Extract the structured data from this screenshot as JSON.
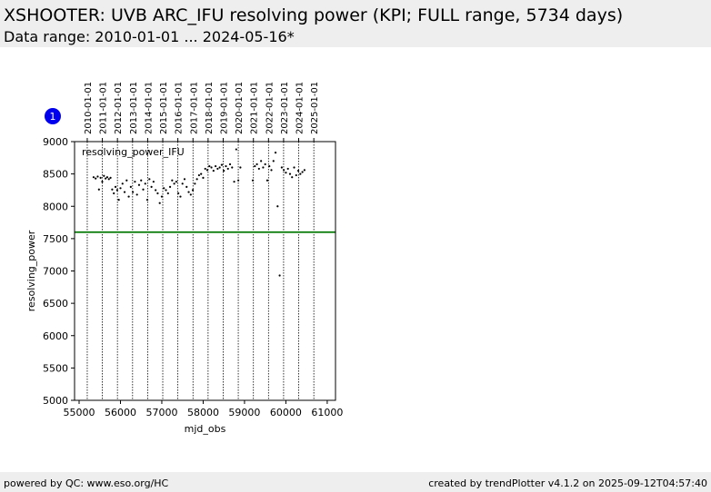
{
  "header": {
    "title": "XSHOOTER: UVB ARC_IFU resolving power (KPI; FULL range, 5734 days)",
    "subtitle": "Data range: 2010-01-01 ... 2024-05-16*"
  },
  "footer": {
    "left": "powered by QC: www.eso.org/HC",
    "right": "created by trendPlotter v4.1.2 on 2025-09-12T04:57:40"
  },
  "chart_data": {
    "type": "scatter",
    "marker": "1",
    "xlabel": "mjd_obs",
    "ylabel": "resolving_power",
    "xlim": [
      54890,
      61200
    ],
    "ylim": [
      5000,
      9000
    ],
    "xticks": [
      55000,
      56000,
      57000,
      58000,
      59000,
      60000,
      61000
    ],
    "yticks": [
      5000,
      5500,
      6000,
      6500,
      7000,
      7500,
      8000,
      8500,
      9000
    ],
    "top_ticks": [
      {
        "value": 55197,
        "label": "2010-01-01"
      },
      {
        "value": 55562,
        "label": "2011-01-01"
      },
      {
        "value": 55927,
        "label": "2012-01-01"
      },
      {
        "value": 56293,
        "label": "2013-01-01"
      },
      {
        "value": 56658,
        "label": "2014-01-01"
      },
      {
        "value": 57023,
        "label": "2015-01-01"
      },
      {
        "value": 57388,
        "label": "2016-01-01"
      },
      {
        "value": 57754,
        "label": "2017-01-01"
      },
      {
        "value": 58119,
        "label": "2018-01-01"
      },
      {
        "value": 58484,
        "label": "2019-01-01"
      },
      {
        "value": 58849,
        "label": "2020-01-01"
      },
      {
        "value": 59215,
        "label": "2021-01-01"
      },
      {
        "value": 59580,
        "label": "2022-01-01"
      },
      {
        "value": 59945,
        "label": "2023-01-01"
      },
      {
        "value": 60310,
        "label": "2024-01-01"
      },
      {
        "value": 60676,
        "label": "2025-01-01"
      }
    ],
    "threshold": 7600,
    "threshold_color": "#007700",
    "series": [
      {
        "name": "resolving_power_IFU",
        "color": "#000000",
        "x": [
          55350,
          55400,
          55450,
          55480,
          55520,
          55560,
          55600,
          55640,
          55680,
          55720,
          55760,
          55800,
          55840,
          55880,
          55920,
          55960,
          56000,
          56050,
          56100,
          56150,
          56200,
          56250,
          56300,
          56350,
          56400,
          56450,
          56500,
          56550,
          56600,
          56650,
          56700,
          56750,
          56800,
          56850,
          56900,
          56950,
          57000,
          57050,
          57100,
          57150,
          57200,
          57250,
          57300,
          57350,
          57400,
          57450,
          57500,
          57550,
          57600,
          57650,
          57700,
          57750,
          57800,
          57850,
          57900,
          57950,
          58000,
          58050,
          58100,
          58150,
          58200,
          58250,
          58300,
          58350,
          58400,
          58450,
          58500,
          58550,
          58600,
          58650,
          58700,
          58750,
          58800,
          58850,
          58900,
          59200,
          59250,
          59300,
          59350,
          59400,
          59450,
          59500,
          59550,
          59600,
          59650,
          59700,
          59750,
          59800,
          59850,
          59900,
          59950,
          60000,
          60050,
          60100,
          60150,
          60200,
          60250,
          60300,
          60350,
          60400,
          60450
        ],
        "values": [
          8450,
          8430,
          8460,
          8260,
          8440,
          8380,
          8470,
          8430,
          8450,
          8420,
          8440,
          8260,
          8200,
          8300,
          8250,
          8100,
          8280,
          8350,
          8220,
          8400,
          8150,
          8300,
          8220,
          8380,
          8180,
          8330,
          8400,
          8260,
          8350,
          8100,
          8420,
          8300,
          8380,
          8250,
          8200,
          8050,
          8150,
          8280,
          8250,
          8200,
          8300,
          8400,
          8350,
          8380,
          8200,
          8150,
          8350,
          8420,
          8300,
          8220,
          8180,
          8250,
          8350,
          8420,
          8480,
          8500,
          8440,
          8580,
          8560,
          8620,
          8600,
          8550,
          8620,
          8580,
          8600,
          8640,
          8550,
          8620,
          8580,
          8650,
          8600,
          8380,
          8880,
          8400,
          8600,
          8400,
          8620,
          8650,
          8580,
          8700,
          8600,
          8650,
          8400,
          8620,
          8560,
          8700,
          8830,
          8000,
          6930,
          8600,
          8560,
          8520,
          8580,
          8500,
          8450,
          8600,
          8480,
          8550,
          8500,
          8530,
          8560
        ]
      }
    ]
  }
}
